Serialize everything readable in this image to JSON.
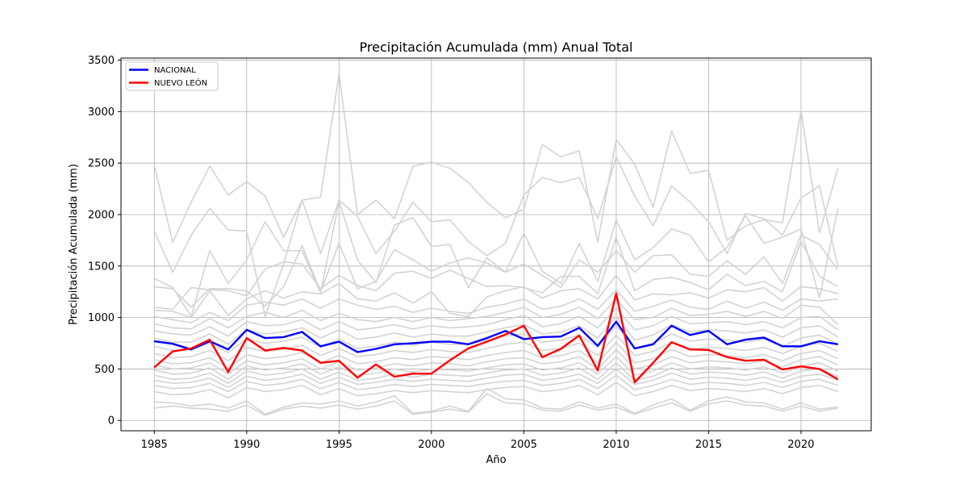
{
  "chart_data": {
    "type": "line",
    "title": "Precipitación Acumulada (mm) Anual Total",
    "xlabel": "Año",
    "ylabel": "Precipitación Acumulada (mm)",
    "xlim": [
      1983.2,
      2023.8
    ],
    "ylim": [
      -100,
      3520
    ],
    "xticks": [
      1985,
      1990,
      1995,
      2000,
      2005,
      2010,
      2015,
      2020
    ],
    "yticks": [
      0,
      500,
      1000,
      1500,
      2000,
      2500,
      3000,
      3500
    ],
    "grid": true,
    "legend_position": "upper-left",
    "x": [
      1985,
      1986,
      1987,
      1988,
      1989,
      1990,
      1991,
      1992,
      1993,
      1994,
      1995,
      1996,
      1997,
      1998,
      1999,
      2000,
      2001,
      2002,
      2003,
      2004,
      2005,
      2006,
      2007,
      2008,
      2009,
      2010,
      2011,
      2012,
      2013,
      2014,
      2015,
      2016,
      2017,
      2018,
      2019,
      2020,
      2021,
      2022
    ],
    "series": [
      {
        "name": "NACIONAL",
        "color": "#0000ff",
        "highlight": true,
        "values": [
          770,
          745,
          690,
          770,
          690,
          880,
          800,
          810,
          860,
          720,
          765,
          665,
          695,
          740,
          750,
          765,
          765,
          740,
          800,
          870,
          790,
          810,
          815,
          900,
          725,
          960,
          700,
          740,
          920,
          830,
          870,
          740,
          785,
          805,
          720,
          720,
          770,
          740
        ]
      },
      {
        "name": "NUEVO LEÓN",
        "color": "#ff0000",
        "highlight": true,
        "values": [
          515,
          670,
          700,
          785,
          470,
          800,
          680,
          705,
          680,
          560,
          580,
          415,
          545,
          425,
          455,
          455,
          585,
          700,
          765,
          835,
          920,
          615,
          695,
          825,
          485,
          1235,
          370,
          560,
          760,
          690,
          685,
          615,
          580,
          590,
          495,
          525,
          500,
          400
        ]
      },
      {
        "color": "#d3d3d3",
        "values": [
          2480,
          1730,
          2120,
          2470,
          2190,
          2320,
          2180,
          1780,
          2140,
          2170,
          3370,
          2000,
          2140,
          1960,
          2470,
          2510,
          2450,
          2310,
          2120,
          1970,
          2050,
          2680,
          2560,
          2620,
          1730,
          2730,
          2490,
          2070,
          2810,
          2400,
          2430,
          1750,
          1890,
          1950,
          1920,
          3010,
          1820,
          2450
        ]
      },
      {
        "color": "#d3d3d3",
        "values": [
          1840,
          1440,
          1800,
          2060,
          1850,
          1840,
          1010,
          1520,
          2140,
          1620,
          2140,
          1980,
          1620,
          1840,
          2120,
          1930,
          1950,
          1740,
          1600,
          1720,
          2190,
          2360,
          2310,
          2360,
          1960,
          2560,
          2180,
          1890,
          2280,
          2120,
          1930,
          1620,
          2010,
          1960,
          1800,
          2160,
          2280,
          1490
        ]
      },
      {
        "color": "#d3d3d3",
        "values": [
          1380,
          1290,
          1010,
          1650,
          1330,
          1560,
          1930,
          1650,
          1650,
          1240,
          2130,
          1560,
          1340,
          1900,
          1970,
          1690,
          1710,
          1290,
          1580,
          1440,
          1820,
          1450,
          1330,
          1720,
          1350,
          1950,
          1560,
          1680,
          1860,
          1800,
          1540,
          1680,
          1990,
          1720,
          1780,
          1860,
          1190,
          2060
        ]
      },
      {
        "color": "#d3d3d3",
        "values": [
          1300,
          1280,
          1100,
          1280,
          1280,
          1260,
          1110,
          1300,
          1700,
          1250,
          1720,
          1280,
          1350,
          1660,
          1560,
          1450,
          1530,
          1580,
          1530,
          1440,
          1520,
          1410,
          1290,
          1560,
          1440,
          1650,
          1440,
          1600,
          1610,
          1420,
          1400,
          1550,
          1420,
          1590,
          1330,
          1800,
          1710,
          1460
        ]
      },
      {
        "color": "#d3d3d3",
        "values": [
          1100,
          1080,
          1290,
          1270,
          1260,
          1210,
          1470,
          1540,
          1520,
          1280,
          1410,
          1310,
          1260,
          1430,
          1450,
          1380,
          1460,
          1380,
          1300,
          1310,
          1290,
          1240,
          1400,
          1400,
          1230,
          1780,
          1260,
          1370,
          1390,
          1340,
          1270,
          1420,
          1310,
          1350,
          1250,
          1740,
          1400,
          1300
        ]
      },
      {
        "color": "#d3d3d3",
        "values": [
          1070,
          1060,
          1000,
          1260,
          1020,
          1180,
          1260,
          1190,
          1250,
          1230,
          1330,
          1180,
          1160,
          1240,
          1140,
          1250,
          1040,
          1010,
          1200,
          1260,
          1300,
          1190,
          1260,
          1280,
          1180,
          1410,
          1170,
          1230,
          1220,
          1240,
          1190,
          1270,
          1250,
          1290,
          1160,
          1300,
          1280,
          1230
        ]
      },
      {
        "color": "#d3d3d3",
        "values": [
          1010,
          980,
          950,
          1050,
          970,
          1120,
          1150,
          1120,
          1180,
          1090,
          1180,
          1120,
          1080,
          1110,
          1050,
          1090,
          1060,
          1040,
          1100,
          1130,
          1180,
          1080,
          1110,
          1180,
          1080,
          1270,
          1060,
          1110,
          1170,
          1100,
          1080,
          1160,
          1090,
          1150,
          1070,
          1180,
          1160,
          1180
        ]
      },
      {
        "color": "#d3d3d3",
        "values": [
          940,
          900,
          890,
          990,
          900,
          1010,
          1050,
          1000,
          1070,
          970,
          1040,
          980,
          960,
          1000,
          960,
          1000,
          970,
          990,
          1010,
          1050,
          1100,
          1000,
          1030,
          1100,
          990,
          1180,
          980,
          1000,
          1090,
          1020,
          1030,
          1060,
          1010,
          1060,
          990,
          1120,
          1100,
          930
        ]
      },
      {
        "color": "#d3d3d3",
        "values": [
          870,
          840,
          830,
          910,
          820,
          960,
          920,
          930,
          980,
          880,
          960,
          880,
          900,
          930,
          890,
          920,
          900,
          910,
          930,
          980,
          1020,
          910,
          940,
          1010,
          900,
          1090,
          880,
          920,
          1010,
          940,
          950,
          960,
          930,
          960,
          900,
          1000,
          1010,
          880
        ]
      },
      {
        "color": "#d3d3d3",
        "values": [
          800,
          760,
          760,
          840,
          740,
          880,
          840,
          860,
          900,
          800,
          880,
          790,
          810,
          850,
          810,
          840,
          820,
          820,
          860,
          900,
          930,
          840,
          860,
          920,
          800,
          1010,
          780,
          830,
          930,
          860,
          880,
          870,
          850,
          880,
          810,
          900,
          920,
          810
        ]
      },
      {
        "color": "#d3d3d3",
        "values": [
          720,
          680,
          690,
          750,
          660,
          790,
          750,
          770,
          810,
          710,
          790,
          700,
          720,
          760,
          730,
          760,
          740,
          740,
          780,
          820,
          840,
          760,
          780,
          830,
          710,
          920,
          700,
          750,
          840,
          770,
          790,
          780,
          760,
          790,
          720,
          800,
          830,
          740
        ]
      },
      {
        "color": "#d3d3d3",
        "values": [
          650,
          610,
          620,
          680,
          580,
          710,
          670,
          690,
          730,
          630,
          700,
          620,
          640,
          680,
          660,
          690,
          670,
          660,
          700,
          740,
          760,
          680,
          700,
          750,
          630,
          830,
          630,
          670,
          760,
          690,
          710,
          700,
          680,
          710,
          650,
          720,
          750,
          670
        ]
      },
      {
        "color": "#d3d3d3",
        "values": [
          590,
          550,
          560,
          610,
          510,
          640,
          600,
          620,
          660,
          560,
          630,
          550,
          570,
          610,
          590,
          620,
          610,
          590,
          630,
          660,
          680,
          610,
          630,
          680,
          560,
          760,
          560,
          600,
          690,
          620,
          640,
          630,
          610,
          640,
          580,
          650,
          680,
          600
        ]
      },
      {
        "color": "#d3d3d3",
        "values": [
          540,
          500,
          510,
          560,
          450,
          580,
          540,
          560,
          600,
          500,
          570,
          490,
          510,
          550,
          530,
          560,
          550,
          530,
          570,
          600,
          610,
          550,
          570,
          620,
          500,
          690,
          500,
          540,
          620,
          560,
          580,
          570,
          550,
          580,
          520,
          590,
          620,
          540
        ]
      },
      {
        "color": "#d3d3d3",
        "values": [
          490,
          450,
          460,
          510,
          400,
          530,
          490,
          510,
          550,
          450,
          520,
          440,
          460,
          500,
          470,
          500,
          490,
          480,
          510,
          540,
          550,
          490,
          510,
          560,
          450,
          620,
          440,
          480,
          560,
          500,
          520,
          510,
          490,
          520,
          460,
          530,
          560,
          480
        ]
      },
      {
        "color": "#d3d3d3",
        "values": [
          440,
          400,
          410,
          460,
          360,
          480,
          440,
          460,
          500,
          400,
          470,
          390,
          410,
          450,
          420,
          450,
          440,
          430,
          460,
          490,
          500,
          440,
          460,
          510,
          400,
          560,
          390,
          430,
          510,
          450,
          470,
          460,
          440,
          470,
          410,
          480,
          500,
          430
        ]
      },
      {
        "color": "#d3d3d3",
        "values": [
          390,
          360,
          370,
          410,
          320,
          430,
          390,
          410,
          450,
          360,
          420,
          350,
          370,
          400,
          380,
          400,
          390,
          380,
          410,
          440,
          450,
          390,
          410,
          450,
          360,
          500,
          350,
          390,
          460,
          400,
          420,
          410,
          390,
          420,
          370,
          430,
          450,
          390
        ]
      },
      {
        "color": "#d3d3d3",
        "values": [
          340,
          310,
          320,
          360,
          280,
          380,
          340,
          360,
          400,
          310,
          370,
          300,
          320,
          350,
          330,
          350,
          340,
          330,
          360,
          380,
          390,
          340,
          360,
          400,
          310,
          440,
          300,
          340,
          400,
          350,
          370,
          360,
          340,
          370,
          320,
          380,
          400,
          340
        ]
      },
      {
        "color": "#d3d3d3",
        "values": [
          280,
          250,
          260,
          300,
          220,
          320,
          280,
          300,
          340,
          250,
          310,
          240,
          260,
          290,
          270,
          290,
          280,
          270,
          300,
          320,
          330,
          280,
          300,
          340,
          250,
          370,
          240,
          280,
          340,
          290,
          310,
          300,
          280,
          310,
          260,
          320,
          340,
          280
        ]
      },
      {
        "color": "#d3d3d3",
        "values": [
          180,
          170,
          140,
          160,
          120,
          190,
          60,
          130,
          170,
          160,
          190,
          140,
          180,
          240,
          70,
          90,
          140,
          90,
          310,
          210,
          200,
          120,
          110,
          180,
          120,
          160,
          70,
          150,
          210,
          100,
          190,
          230,
          180,
          170,
          110,
          170,
          110,
          130
        ]
      },
      {
        "color": "#d3d3d3",
        "values": [
          120,
          140,
          120,
          110,
          90,
          150,
          50,
          110,
          140,
          120,
          150,
          110,
          140,
          190,
          60,
          80,
          110,
          80,
          260,
          170,
          160,
          100,
          90,
          150,
          100,
          130,
          60,
          120,
          170,
          90,
          160,
          190,
          150,
          140,
          90,
          140,
          90,
          120
        ]
      }
    ]
  }
}
